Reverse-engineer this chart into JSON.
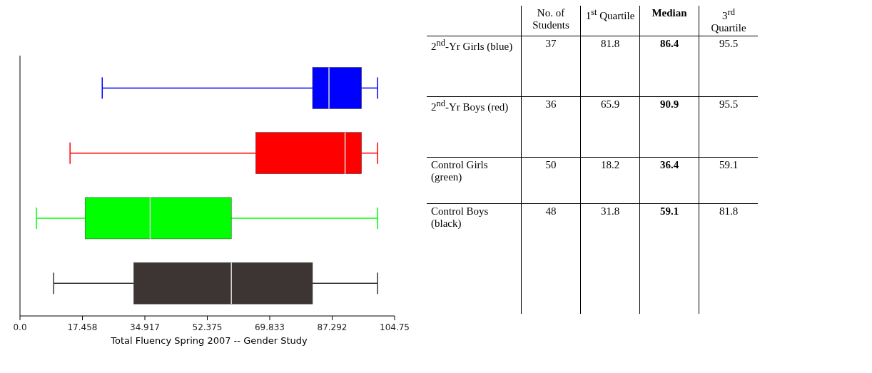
{
  "chart_data": [
    {
      "type": "box",
      "orientation": "horizontal",
      "xlabel": "Total Fluency Spring 2007 -- Gender Study",
      "categories": [
        null,
        null,
        null,
        null
      ],
      "colors": [
        "#0000ff",
        "#ff0000",
        "#00ff00",
        "#3d3534"
      ],
      "boxes": [
        {
          "low": 23,
          "q1": 81.8,
          "median": 86.4,
          "q3": 95.5,
          "high": 100
        },
        {
          "low": 14,
          "q1": 65.9,
          "median": 90.9,
          "q3": 95.5,
          "high": 100
        },
        {
          "low": 4.6,
          "q1": 18.2,
          "median": 36.4,
          "q3": 59.1,
          "high": 100
        },
        {
          "low": 9.4,
          "q1": 31.8,
          "median": 59.1,
          "q3": 81.8,
          "high": 100
        }
      ],
      "xlim": [
        0,
        104.75
      ],
      "xticks": [
        {
          "value": 0,
          "label": "0.0"
        },
        {
          "value": 17.458,
          "label": "17.458"
        },
        {
          "value": 34.917,
          "label": "34.917"
        },
        {
          "value": 52.375,
          "label": "52.375"
        },
        {
          "value": 69.833,
          "label": "69.833"
        },
        {
          "value": 87.292,
          "label": "87.292"
        },
        {
          "value": 104.75,
          "label": "104.75"
        }
      ],
      "grid": false,
      "legend": false
    },
    {
      "type": "heatmap",
      "data_labels": true,
      "categories": [
        "No. of Students",
        "1$^{st}$ Quartile",
        "Median",
        "3$^{rd}$ Quartile"
      ],
      "y_categories": [
        "2$^{nd}$-Yr Girls (blue)",
        "2$^{nd}$-Yr Boys (red)",
        "Control Girls (green)",
        "Control Boys (black)"
      ],
      "cells": [
        [
          37,
          81.8,
          86.4,
          95.5
        ],
        [
          36,
          65.9,
          90.9,
          95.5
        ],
        [
          50,
          18.2,
          36.4,
          59.1
        ],
        [
          48,
          31.8,
          59.1,
          81.8
        ]
      ]
    }
  ]
}
